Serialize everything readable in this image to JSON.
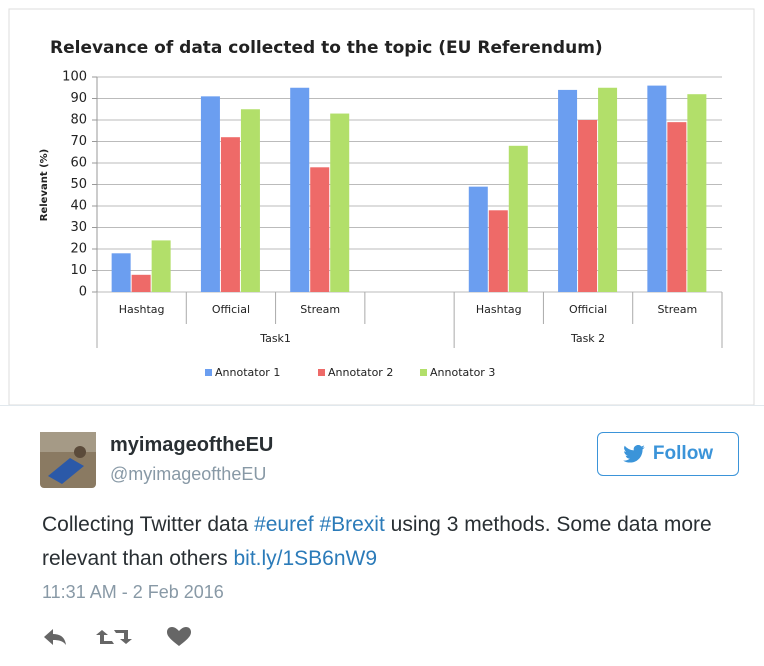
{
  "chart_data": {
    "type": "bar",
    "title": "Relevance of data collected to the topic (EU Referendum)",
    "y_label": "Relevant (%)",
    "categories": [
      "Hashtag",
      "Official",
      "Stream",
      null,
      "Hashtag",
      "Official",
      "Stream"
    ],
    "group_labels": [
      "Task1",
      "Task 2"
    ],
    "series": [
      {
        "name": "Annotator 1",
        "color": "#6b9ef0",
        "values": [
          18,
          91,
          95,
          null,
          49,
          94,
          96
        ]
      },
      {
        "name": "Annotator 2",
        "color": "#ee6a68",
        "values": [
          8,
          72,
          58,
          null,
          38,
          80,
          79
        ]
      },
      {
        "name": "Annotator 3",
        "color": "#b2df6a",
        "values": [
          24,
          85,
          83,
          null,
          68,
          95,
          92
        ]
      }
    ],
    "ylim": [
      0,
      100
    ],
    "yticks": [
      0,
      10,
      20,
      30,
      40,
      50,
      60,
      70,
      80,
      90,
      100
    ],
    "grid": true,
    "legend": "bottom"
  },
  "tweet": {
    "name": "myimageoftheEU",
    "handle": "@myimageoftheEU",
    "follow": "Follow",
    "text_before": "Collecting Twitter data",
    "hashtags": [
      "#euref",
      "#Brexit"
    ],
    "text_after": "using 3 methods. Some data more relevant than others",
    "link": "bit.ly/1SB6nW9",
    "timestamp": "11:31 AM - 2 Feb 2016"
  }
}
